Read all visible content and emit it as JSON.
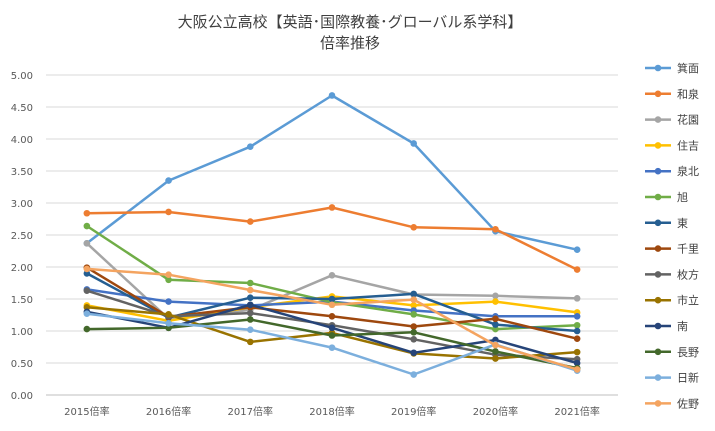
{
  "chart_data": {
    "type": "line",
    "title_line1": "大阪公立高校【英語･国際教養･グローバル系学科】",
    "title_line2": "倍率推移",
    "categories": [
      "2015倍率",
      "2016倍率",
      "2017倍率",
      "2018倍率",
      "2019倍率",
      "2020倍率",
      "2021倍率"
    ],
    "y_ticks": [
      "0.00",
      "0.50",
      "1.00",
      "1.50",
      "2.00",
      "2.50",
      "3.00",
      "3.50",
      "4.00",
      "4.50",
      "5.00"
    ],
    "ylim": [
      0,
      5
    ],
    "grid": true,
    "legend_position": "right",
    "series": [
      {
        "name": "箕面",
        "color": "#5b9bd5",
        "values": [
          2.37,
          3.35,
          3.88,
          4.68,
          3.93,
          2.56,
          2.27
        ]
      },
      {
        "name": "和泉",
        "color": "#ed7d31",
        "values": [
          2.84,
          2.86,
          2.71,
          2.93,
          2.62,
          2.59,
          1.96
        ]
      },
      {
        "name": "花園",
        "color": "#a5a5a5",
        "values": [
          2.37,
          1.19,
          1.33,
          1.87,
          1.57,
          1.55,
          1.51
        ]
      },
      {
        "name": "住吉",
        "color": "#ffc000",
        "values": [
          1.4,
          1.16,
          1.37,
          1.54,
          1.4,
          1.46,
          1.29
        ]
      },
      {
        "name": "泉北",
        "color": "#4472c4",
        "values": [
          1.65,
          1.46,
          1.4,
          1.46,
          1.32,
          1.23,
          1.23
        ]
      },
      {
        "name": "旭",
        "color": "#70ad47",
        "values": [
          2.64,
          1.8,
          1.75,
          1.45,
          1.26,
          1.03,
          1.09
        ]
      },
      {
        "name": "東",
        "color": "#255e91",
        "values": [
          1.9,
          1.21,
          1.52,
          1.5,
          1.58,
          1.1,
          1.0
        ]
      },
      {
        "name": "千里",
        "color": "#9e480e",
        "values": [
          1.99,
          1.22,
          1.37,
          1.23,
          1.07,
          1.19,
          0.88
        ]
      },
      {
        "name": "枚方",
        "color": "#636363",
        "values": [
          1.63,
          1.23,
          1.28,
          1.09,
          0.87,
          0.63,
          0.56
        ]
      },
      {
        "name": "市立",
        "color": "#997300",
        "values": [
          1.37,
          1.26,
          0.83,
          0.97,
          0.65,
          0.57,
          0.67
        ]
      },
      {
        "name": "南",
        "color": "#264478",
        "values": [
          1.3,
          1.05,
          1.41,
          1.05,
          0.66,
          0.86,
          0.5
        ]
      },
      {
        "name": "長野",
        "color": "#43682b",
        "values": [
          1.03,
          1.05,
          1.18,
          0.93,
          0.98,
          0.68,
          0.42
        ]
      },
      {
        "name": "日新",
        "color": "#7cafdd",
        "values": [
          1.27,
          1.12,
          1.02,
          0.74,
          0.32,
          0.79,
          0.38
        ]
      },
      {
        "name": "佐野",
        "color": "#f4a460",
        "values": [
          1.97,
          1.88,
          1.64,
          1.41,
          1.49,
          0.78,
          0.4
        ]
      }
    ]
  }
}
